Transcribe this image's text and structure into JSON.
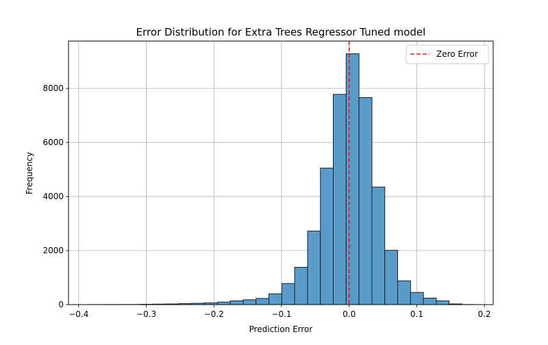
{
  "chart_data": {
    "type": "bar",
    "title": "Error Distribution for Extra Trees Regressor Tuned model",
    "xlabel": "Prediction Error",
    "ylabel": "Frequency",
    "xlim": [
      -0.415,
      0.213
    ],
    "ylim": [
      0,
      9750
    ],
    "grid": true,
    "legend_position": "top-right",
    "bar_color": "#5b9bcb",
    "bar_edge_color": "#1f1f1f",
    "x_ticks": [
      {
        "value": -0.4,
        "label": "−0.4"
      },
      {
        "value": -0.3,
        "label": "−0.3"
      },
      {
        "value": -0.2,
        "label": "−0.2"
      },
      {
        "value": -0.1,
        "label": "−0.1"
      },
      {
        "value": 0.0,
        "label": "0.0"
      },
      {
        "value": 0.1,
        "label": "0.1"
      },
      {
        "value": 0.2,
        "label": "0.2"
      }
    ],
    "y_ticks": [
      {
        "value": 0,
        "label": "0"
      },
      {
        "value": 2000,
        "label": "2000"
      },
      {
        "value": 4000,
        "label": "4000"
      },
      {
        "value": 6000,
        "label": "6000"
      },
      {
        "value": 8000,
        "label": "8000"
      }
    ],
    "bins": [
      {
        "x0": -0.3852,
        "x1": -0.3662,
        "count": 2
      },
      {
        "x0": -0.3662,
        "x1": -0.3471,
        "count": 3
      },
      {
        "x0": -0.3471,
        "x1": -0.3281,
        "count": 4
      },
      {
        "x0": -0.3281,
        "x1": -0.309,
        "count": 5
      },
      {
        "x0": -0.309,
        "x1": -0.29,
        "count": 12
      },
      {
        "x0": -0.29,
        "x1": -0.271,
        "count": 18
      },
      {
        "x0": -0.271,
        "x1": -0.2519,
        "count": 25
      },
      {
        "x0": -0.2519,
        "x1": -0.2329,
        "count": 40
      },
      {
        "x0": -0.2329,
        "x1": -0.2138,
        "count": 50
      },
      {
        "x0": -0.2138,
        "x1": -0.1948,
        "count": 65
      },
      {
        "x0": -0.1948,
        "x1": -0.1758,
        "count": 95
      },
      {
        "x0": -0.1758,
        "x1": -0.1567,
        "count": 140
      },
      {
        "x0": -0.1567,
        "x1": -0.1377,
        "count": 180
      },
      {
        "x0": -0.1377,
        "x1": -0.1187,
        "count": 230
      },
      {
        "x0": -0.1187,
        "x1": -0.0996,
        "count": 400
      },
      {
        "x0": -0.0996,
        "x1": -0.0806,
        "count": 780
      },
      {
        "x0": -0.0806,
        "x1": -0.0615,
        "count": 1380
      },
      {
        "x0": -0.0615,
        "x1": -0.0425,
        "count": 2720
      },
      {
        "x0": -0.0425,
        "x1": -0.0235,
        "count": 5050
      },
      {
        "x0": -0.0235,
        "x1": -0.0044,
        "count": 7780
      },
      {
        "x0": -0.0044,
        "x1": 0.0146,
        "count": 9280
      },
      {
        "x0": 0.0146,
        "x1": 0.0337,
        "count": 7660
      },
      {
        "x0": 0.0337,
        "x1": 0.0527,
        "count": 4350
      },
      {
        "x0": 0.0527,
        "x1": 0.0717,
        "count": 2010
      },
      {
        "x0": 0.0717,
        "x1": 0.0908,
        "count": 880
      },
      {
        "x0": 0.0908,
        "x1": 0.1098,
        "count": 450
      },
      {
        "x0": 0.1098,
        "x1": 0.1289,
        "count": 240
      },
      {
        "x0": 0.1289,
        "x1": 0.1479,
        "count": 140
      },
      {
        "x0": 0.1479,
        "x1": 0.1669,
        "count": 25
      },
      {
        "x0": 0.1669,
        "x1": 0.186,
        "count": 4
      }
    ],
    "reference_line": {
      "x": 0,
      "color": "#e41a1c",
      "style": "dashed",
      "label": "Zero Error"
    }
  }
}
